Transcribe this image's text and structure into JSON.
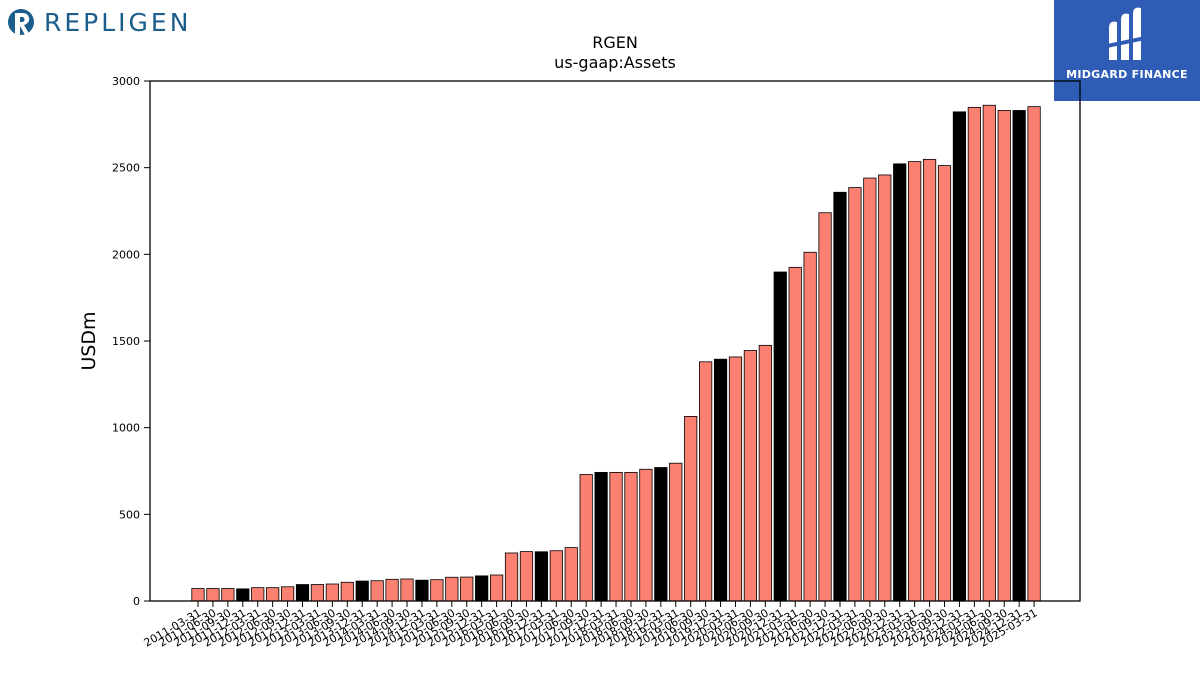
{
  "branding": {
    "left_logo_text": "REPLIGEN",
    "right_logo_text": "MIDGARD FINANCE",
    "left_color": "#1b5e8c",
    "right_bg": "#2f5db5"
  },
  "chart_data": {
    "type": "bar",
    "title": "RGEN",
    "subtitle": "us-gaap:Assets",
    "xlabel": "",
    "ylabel": "USDm",
    "ylim": [
      0,
      3000
    ],
    "yticks": [
      0,
      500,
      1000,
      1500,
      2000,
      2500,
      3000
    ],
    "grid": false,
    "bar_colors": {
      "quarter": "#fa8072",
      "year_end": "#000000"
    },
    "categories": [
      "2011-03-31",
      "2011-06-30",
      "2011-09-30",
      "2011-12-31",
      "2012-03-31",
      "2012-06-30",
      "2012-09-30",
      "2012-12-31",
      "2013-03-31",
      "2013-06-30",
      "2013-09-30",
      "2013-12-31",
      "2014-03-31",
      "2014-06-30",
      "2014-09-30",
      "2014-12-31",
      "2015-03-31",
      "2015-06-30",
      "2015-09-30",
      "2015-12-31",
      "2016-03-31",
      "2016-06-30",
      "2016-09-30",
      "2016-12-31",
      "2017-03-31",
      "2017-06-30",
      "2017-09-30",
      "2017-12-31",
      "2018-03-31",
      "2018-06-30",
      "2018-09-30",
      "2018-12-31",
      "2019-03-31",
      "2019-06-30",
      "2019-09-30",
      "2019-12-31",
      "2020-03-31",
      "2020-06-30",
      "2020-09-30",
      "2020-12-31",
      "2021-03-31",
      "2021-06-30",
      "2021-09-30",
      "2021-12-31",
      "2022-03-31",
      "2022-06-30",
      "2022-09-30",
      "2022-12-31",
      "2023-03-31",
      "2023-06-30",
      "2023-09-30",
      "2023-12-31",
      "2024-03-31",
      "2024-06-30",
      "2024-09-30",
      "2024-12-31",
      "2025-03-31"
    ],
    "values": [
      72,
      72,
      72,
      70,
      77,
      77,
      82,
      95,
      95,
      98,
      108,
      115,
      117,
      125,
      127,
      120,
      123,
      137,
      138,
      145,
      150,
      277,
      285,
      284,
      290,
      308,
      730,
      742,
      742,
      742,
      760,
      770,
      795,
      1065,
      1380,
      1395,
      1408,
      1445,
      1475,
      1898,
      1925,
      2012,
      2240,
      2358,
      2385,
      2440,
      2458,
      2522,
      2535,
      2548,
      2512,
      2822,
      2848,
      2860,
      2830,
      2830,
      2852
    ],
    "highlight": [
      false,
      false,
      false,
      true,
      false,
      false,
      false,
      true,
      false,
      false,
      false,
      true,
      false,
      false,
      false,
      true,
      false,
      false,
      false,
      true,
      false,
      false,
      false,
      true,
      false,
      false,
      false,
      true,
      false,
      false,
      false,
      true,
      false,
      false,
      false,
      true,
      false,
      false,
      false,
      true,
      false,
      false,
      false,
      true,
      false,
      false,
      false,
      true,
      false,
      false,
      false,
      true,
      false,
      false,
      false,
      true,
      false
    ]
  }
}
